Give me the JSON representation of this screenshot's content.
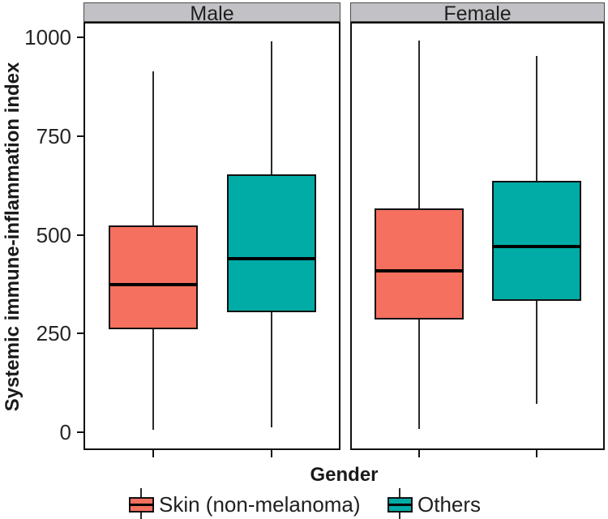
{
  "figure": {
    "background": "#FFFFFF"
  },
  "axes": {
    "y": {
      "title": "Systemic immune-inflammation index"
    },
    "x": {
      "title": "Gender"
    }
  },
  "legend": {
    "position": "bottom",
    "items": [
      {
        "label": "Skin (non-melanoma)",
        "color_key": "skin"
      },
      {
        "label": "Others",
        "color_key": "others"
      }
    ]
  },
  "colors": {
    "skin": "#F5705E",
    "others": "#00ACA5",
    "strip_bg": "#C2C2C6",
    "line": "#111111",
    "text": "#1F1F1F"
  },
  "chart_data": {
    "type": "boxplot",
    "title": "",
    "xlabel": "Gender",
    "ylabel": "Systemic immune-inflammation index",
    "ylim": [
      -45,
      1040
    ],
    "yticks": [
      0,
      250,
      500,
      750,
      1000
    ],
    "grid": false,
    "legend_position": "bottom",
    "facet_labels": [
      "Male",
      "Female"
    ],
    "facets": [
      {
        "label": "Male",
        "boxes": [
          {
            "group": "Skin (non-melanoma)",
            "color_key": "skin",
            "whisker_low": 6,
            "q1": 262,
            "median": 375,
            "q3": 525,
            "whisker_high": 915
          },
          {
            "group": "Others",
            "color_key": "others",
            "whisker_low": 13,
            "q1": 305,
            "median": 440,
            "q3": 654,
            "whisker_high": 991
          }
        ]
      },
      {
        "label": "Female",
        "boxes": [
          {
            "group": "Skin (non-melanoma)",
            "color_key": "skin",
            "whisker_low": 8,
            "q1": 286,
            "median": 410,
            "q3": 568,
            "whisker_high": 993
          },
          {
            "group": "Others",
            "color_key": "others",
            "whisker_low": 73,
            "q1": 334,
            "median": 471,
            "q3": 638,
            "whisker_high": 953
          }
        ]
      }
    ]
  }
}
